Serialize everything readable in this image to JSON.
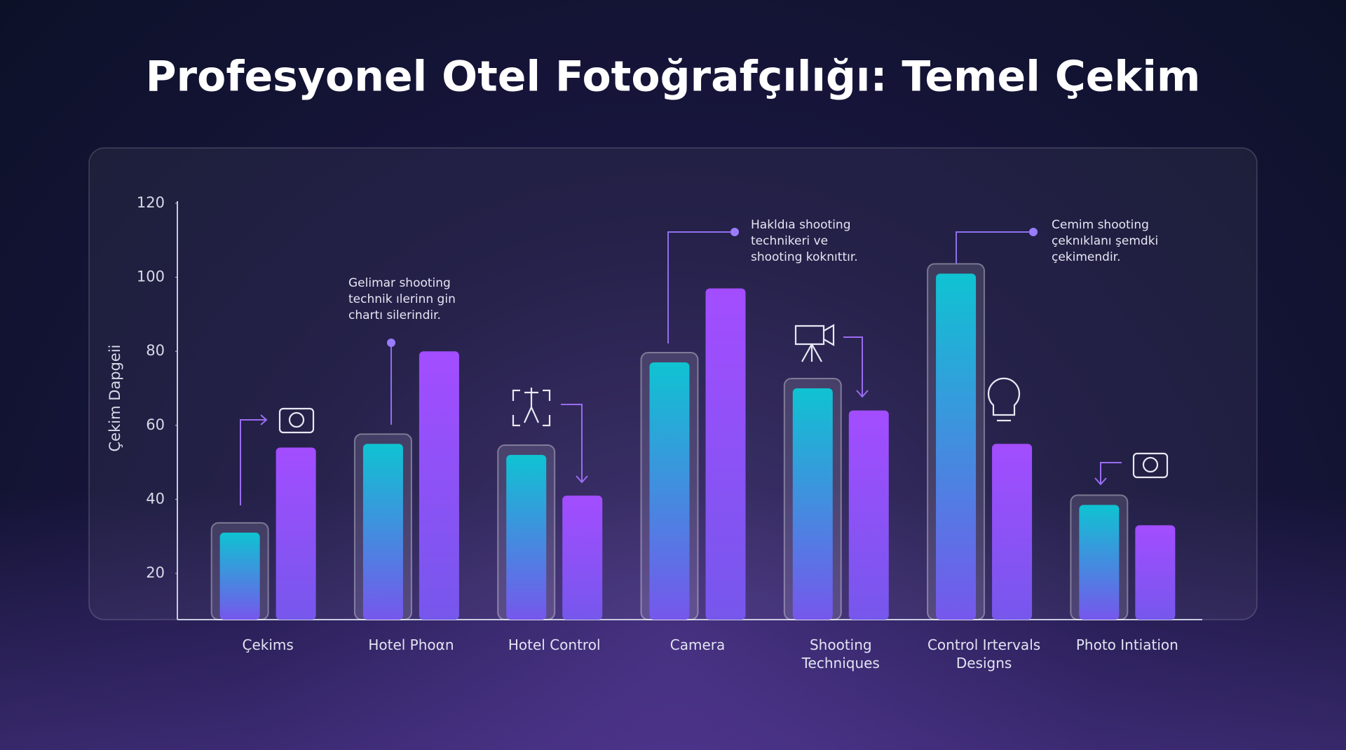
{
  "chart_data": {
    "type": "bar",
    "title": "Profesyonel Otel Fotoğrafçılığı: Temel Çekim",
    "y_label": "Çekim Dapgeii",
    "categories": [
      "Çekims",
      "Hotel Phoαn",
      "Hotel Control",
      "Camera",
      "Shooting Techniques",
      "Control Irtervals Designs",
      "Photo Intiation"
    ],
    "series": [
      {
        "color": "#0fc3d2",
        "values": [
          31,
          55,
          52,
          77,
          70,
          101,
          38.5
        ]
      },
      {
        "color": "#a34dff",
        "values": [
          54,
          80,
          41,
          97,
          64,
          55,
          33
        ]
      }
    ],
    "ylim": [
      7.5,
      120
    ],
    "yticks": [
      20,
      40,
      60,
      80,
      100,
      120
    ],
    "annotations": [
      "Gelimar shooting technik ılerinn gin chartı silerindir.",
      "Hakldıa shooting technikeri ve shooting koknıttır.",
      "Cemim shooting çeknıklanı şemdki çekimendir."
    ]
  }
}
